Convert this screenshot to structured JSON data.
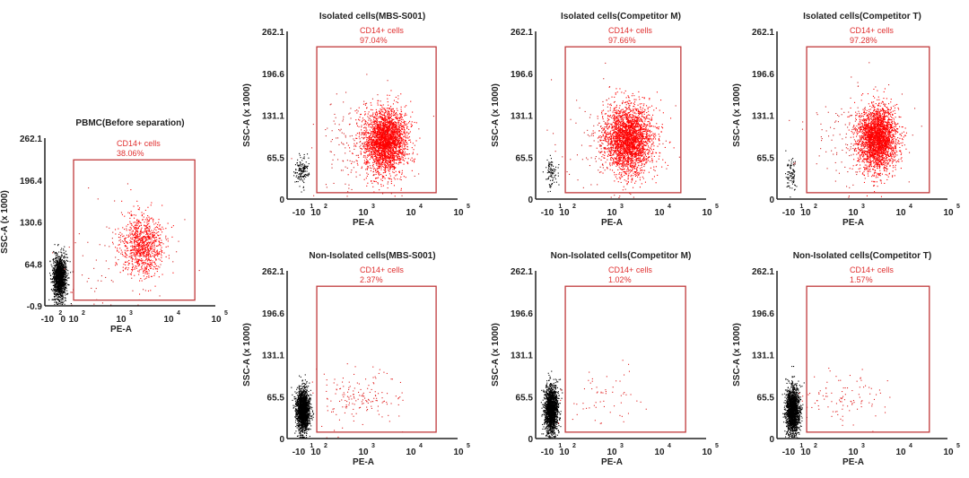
{
  "chart_data": [
    {
      "type": "scatter",
      "title": "PBMC(Before separation)",
      "xlabel": "PE-A",
      "ylabel": "SSC-A (x 1000)",
      "yticks": [
        "262.1",
        "196.4",
        "130.6",
        "64.8",
        "-0.9"
      ],
      "ylim": [
        -0.9,
        262.1
      ],
      "xticks": [
        {
          "base": "-10",
          "exp": "2",
          "d": 1.45
        },
        {
          "base": "0",
          "exp": "",
          "d": 1.78
        },
        {
          "base": "10",
          "exp": "2",
          "d": 2.0
        },
        {
          "base": "10",
          "exp": "3",
          "d": 3.0
        },
        {
          "base": "10",
          "exp": "4",
          "d": 4.0
        },
        {
          "base": "10",
          "exp": "5",
          "d": 5.0
        }
      ],
      "gate": {
        "label": "CD14+ cells",
        "percent": "38.06%",
        "x": [
          2.0,
          4.55
        ],
        "y": [
          8,
          228
        ]
      },
      "populations": [
        {
          "color": "#000000",
          "n": 1500,
          "center": [
            1.7,
            45
          ],
          "sd": [
            0.07,
            17
          ]
        },
        {
          "color": "#ff0000",
          "n": 900,
          "center": [
            3.45,
            95
          ],
          "sd": [
            0.22,
            24
          ]
        },
        {
          "color": "#d02020",
          "n": 90,
          "center": [
            2.9,
            70
          ],
          "sd": [
            0.55,
            40
          ]
        }
      ]
    },
    {
      "type": "scatter",
      "title": "Isolated cells(MBS-S001)",
      "xlabel": "PE-A",
      "ylabel": "SSC-A (x 1000)",
      "yticks": [
        "262.1",
        "196.6",
        "131.1",
        "65.5",
        "0"
      ],
      "ylim": [
        0,
        262.1
      ],
      "xticks": [
        {
          "base": "-10",
          "exp": "1",
          "d": 1.64
        },
        {
          "base": "10",
          "exp": "2",
          "d": 2.0
        },
        {
          "base": "10",
          "exp": "3",
          "d": 3.0
        },
        {
          "base": "10",
          "exp": "4",
          "d": 4.0
        },
        {
          "base": "10",
          "exp": "5",
          "d": 5.0
        }
      ],
      "gate": {
        "label": "CD14+ cells",
        "percent": "97.04%",
        "x": [
          2.02,
          4.53
        ],
        "y": [
          10,
          238
        ]
      },
      "populations": [
        {
          "color": "#000000",
          "n": 150,
          "center": [
            1.7,
            45
          ],
          "sd": [
            0.07,
            12
          ]
        },
        {
          "color": "#ff0000",
          "n": 2600,
          "center": [
            3.45,
            92
          ],
          "sd": [
            0.22,
            24
          ]
        },
        {
          "color": "#d02020",
          "n": 200,
          "center": [
            3.0,
            90
          ],
          "sd": [
            0.5,
            40
          ]
        }
      ]
    },
    {
      "type": "scatter",
      "title": "Isolated cells(Competitor M)",
      "xlabel": "PE-A",
      "ylabel": "SSC-A (x 1000)",
      "yticks": [
        "262.1",
        "196.6",
        "131.1",
        "65.5",
        "0"
      ],
      "ylim": [
        0,
        262.1
      ],
      "xticks": [
        {
          "base": "-10",
          "exp": "1",
          "d": 1.64
        },
        {
          "base": "10",
          "exp": "2",
          "d": 2.0
        },
        {
          "base": "10",
          "exp": "3",
          "d": 3.0
        },
        {
          "base": "10",
          "exp": "4",
          "d": 4.0
        },
        {
          "base": "10",
          "exp": "5",
          "d": 5.0
        }
      ],
      "gate": {
        "label": "CD14+ cells",
        "percent": "97.66%",
        "x": [
          2.02,
          4.45
        ],
        "y": [
          10,
          238
        ]
      },
      "populations": [
        {
          "color": "#000000",
          "n": 90,
          "center": [
            1.72,
            42
          ],
          "sd": [
            0.06,
            12
          ]
        },
        {
          "color": "#ff0000",
          "n": 2600,
          "center": [
            3.35,
            95
          ],
          "sd": [
            0.25,
            26
          ]
        },
        {
          "color": "#d02020",
          "n": 200,
          "center": [
            3.0,
            90
          ],
          "sd": [
            0.5,
            40
          ]
        }
      ]
    },
    {
      "type": "scatter",
      "title": "Isolated cells(Competitor T)",
      "xlabel": "PE-A",
      "ylabel": "SSC-A (x 1000)",
      "yticks": [
        "262.1",
        "196.6",
        "131.1",
        "65.5",
        "0"
      ],
      "ylim": [
        0,
        262.1
      ],
      "xticks": [
        {
          "base": "-10",
          "exp": "1",
          "d": 1.64
        },
        {
          "base": "10",
          "exp": "2",
          "d": 2.0
        },
        {
          "base": "10",
          "exp": "3",
          "d": 3.0
        },
        {
          "base": "10",
          "exp": "4",
          "d": 4.0
        },
        {
          "base": "10",
          "exp": "5",
          "d": 5.0
        }
      ],
      "gate": {
        "label": "CD14+ cells",
        "percent": "97.28%",
        "x": [
          2.02,
          4.6
        ],
        "y": [
          10,
          238
        ]
      },
      "populations": [
        {
          "color": "#000000",
          "n": 90,
          "center": [
            1.7,
            38
          ],
          "sd": [
            0.06,
            12
          ]
        },
        {
          "color": "#ff0000",
          "n": 2600,
          "center": [
            3.5,
            95
          ],
          "sd": [
            0.2,
            24
          ]
        },
        {
          "color": "#d02020",
          "n": 200,
          "center": [
            3.1,
            90
          ],
          "sd": [
            0.5,
            40
          ]
        }
      ]
    },
    {
      "type": "scatter",
      "title": "Non-Isolated cells(MBS-S001)",
      "xlabel": "PE-A",
      "ylabel": "SSC-A (x 1000)",
      "yticks": [
        "262.1",
        "196.6",
        "131.1",
        "65.5",
        "0"
      ],
      "ylim": [
        0,
        262.1
      ],
      "xticks": [
        {
          "base": "-10",
          "exp": "1",
          "d": 1.64
        },
        {
          "base": "10",
          "exp": "2",
          "d": 2.0
        },
        {
          "base": "10",
          "exp": "3",
          "d": 3.0
        },
        {
          "base": "10",
          "exp": "4",
          "d": 4.0
        },
        {
          "base": "10",
          "exp": "5",
          "d": 5.0
        }
      ],
      "gate": {
        "label": "CD14+ cells",
        "percent": "2.37%",
        "x": [
          2.02,
          4.53
        ],
        "y": [
          10,
          238
        ]
      },
      "populations": [
        {
          "color": "#000000",
          "n": 1800,
          "center": [
            1.72,
            45
          ],
          "sd": [
            0.07,
            17
          ]
        },
        {
          "color": "#e02020",
          "n": 160,
          "center": [
            2.9,
            65
          ],
          "sd": [
            0.45,
            22
          ]
        }
      ]
    },
    {
      "type": "scatter",
      "title": "Non-Isolated cells(Competitor M)",
      "xlabel": "PE-A",
      "ylabel": "SSC-A (x 1000)",
      "yticks": [
        "262.1",
        "196.6",
        "131.1",
        "65.5",
        "0"
      ],
      "ylim": [
        0,
        262.1
      ],
      "xticks": [
        {
          "base": "-10",
          "exp": "1",
          "d": 1.64
        },
        {
          "base": "10",
          "exp": "2",
          "d": 2.0
        },
        {
          "base": "10",
          "exp": "3",
          "d": 3.0
        },
        {
          "base": "10",
          "exp": "4",
          "d": 4.0
        },
        {
          "base": "10",
          "exp": "5",
          "d": 5.0
        }
      ],
      "gate": {
        "label": "CD14+ cells",
        "percent": "1.02%",
        "x": [
          2.02,
          4.55
        ],
        "y": [
          10,
          238
        ]
      },
      "populations": [
        {
          "color": "#000000",
          "n": 1800,
          "center": [
            1.72,
            45
          ],
          "sd": [
            0.07,
            18
          ]
        },
        {
          "color": "#e02020",
          "n": 60,
          "center": [
            2.8,
            65
          ],
          "sd": [
            0.45,
            25
          ]
        }
      ]
    },
    {
      "type": "scatter",
      "title": "Non-Isolated cells(Competitor T)",
      "xlabel": "PE-A",
      "ylabel": "SSC-A (x 1000)",
      "yticks": [
        "262.1",
        "196.6",
        "131.1",
        "65.5",
        "0"
      ],
      "ylim": [
        0,
        262.1
      ],
      "xticks": [
        {
          "base": "-10",
          "exp": "1",
          "d": 1.64
        },
        {
          "base": "10",
          "exp": "2",
          "d": 2.0
        },
        {
          "base": "10",
          "exp": "3",
          "d": 3.0
        },
        {
          "base": "10",
          "exp": "4",
          "d": 4.0
        },
        {
          "base": "10",
          "exp": "5",
          "d": 5.0
        }
      ],
      "gate": {
        "label": "CD14+ cells",
        "percent": "1.57%",
        "x": [
          2.02,
          4.6
        ],
        "y": [
          10,
          238
        ]
      },
      "populations": [
        {
          "color": "#000000",
          "n": 1800,
          "center": [
            1.72,
            45
          ],
          "sd": [
            0.07,
            18
          ]
        },
        {
          "color": "#e02020",
          "n": 100,
          "center": [
            2.85,
            65
          ],
          "sd": [
            0.45,
            22
          ]
        }
      ]
    }
  ],
  "colors": {
    "gate": "#c0393b",
    "axis": "#222222",
    "label": "#e03030"
  }
}
